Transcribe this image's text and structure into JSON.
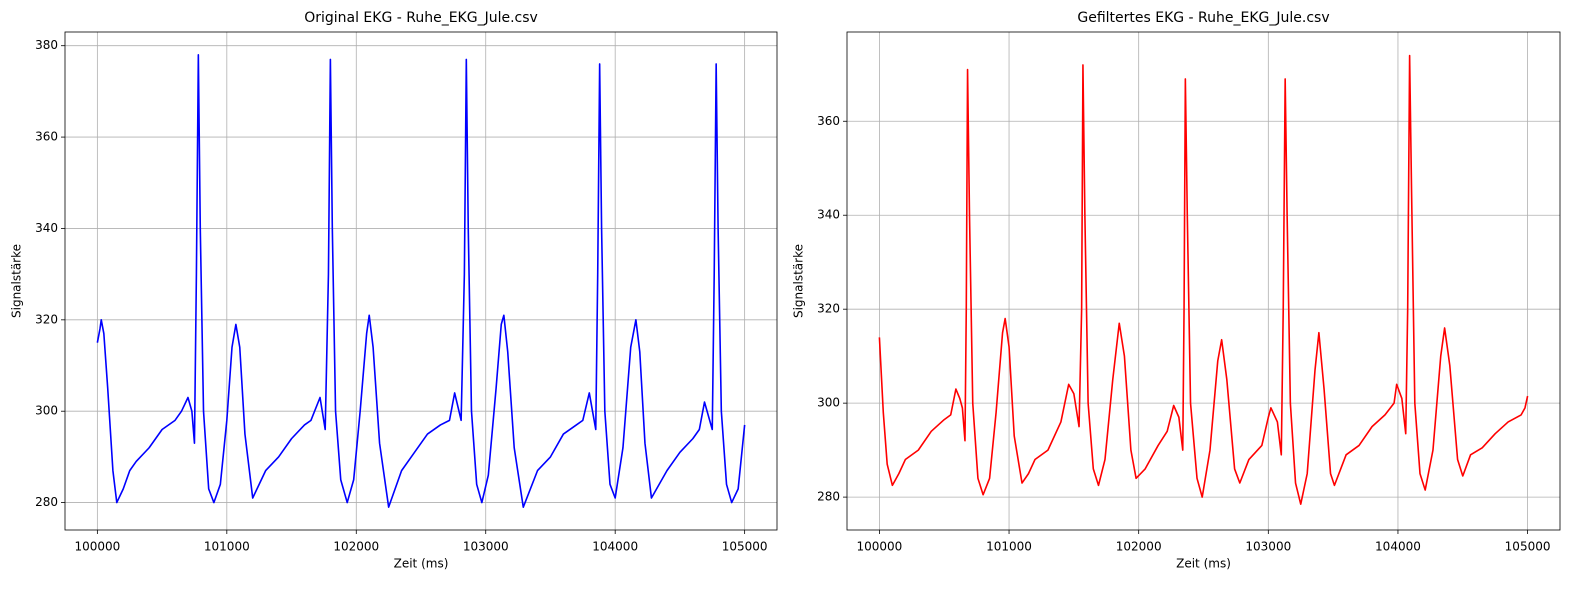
{
  "chart_data": [
    {
      "type": "line",
      "title": "Original EKG - Ruhe_EKG_Jule.csv",
      "xlabel": "Zeit (ms)",
      "ylabel": "Signalstärke",
      "color": "#0000ff",
      "grid": true,
      "xlim": [
        99750,
        105250
      ],
      "ylim": [
        274,
        383
      ],
      "xticks": [
        100000,
        101000,
        102000,
        103000,
        104000,
        105000
      ],
      "yticks": [
        280,
        300,
        320,
        340,
        360,
        380
      ],
      "x": [
        100000,
        100020,
        100030,
        100050,
        100080,
        100120,
        100150,
        100200,
        100250,
        100300,
        100400,
        100500,
        100600,
        100650,
        100700,
        100730,
        100750,
        100765,
        100780,
        100795,
        100820,
        100860,
        100900,
        100950,
        101000,
        101040,
        101070,
        101100,
        101140,
        101200,
        101300,
        101400,
        101500,
        101600,
        101650,
        101720,
        101760,
        101785,
        101800,
        101815,
        101840,
        101880,
        101930,
        101980,
        102030,
        102080,
        102100,
        102130,
        102180,
        102250,
        102350,
        102450,
        102550,
        102650,
        102720,
        102760,
        102810,
        102835,
        102850,
        102865,
        102890,
        102930,
        102970,
        103020,
        103080,
        103120,
        103140,
        103170,
        103220,
        103290,
        103400,
        103500,
        103600,
        103700,
        103750,
        103800,
        103850,
        103865,
        103880,
        103895,
        103920,
        103960,
        104000,
        104060,
        104120,
        104160,
        104190,
        104230,
        104280,
        104400,
        104500,
        104600,
        104650,
        104690,
        104730,
        104750,
        104765,
        104780,
        104795,
        104820,
        104860,
        104900,
        104950,
        105000
      ],
      "values": [
        315,
        318,
        320,
        317,
        305,
        287,
        280,
        283,
        287,
        289,
        292,
        296,
        298,
        300,
        303,
        300,
        293,
        330,
        378,
        340,
        300,
        283,
        280,
        284,
        298,
        314,
        319,
        314,
        295,
        281,
        287,
        290,
        294,
        297,
        298,
        303,
        296,
        330,
        377,
        340,
        300,
        285,
        280,
        285,
        300,
        317,
        321,
        314,
        293,
        279,
        287,
        291,
        295,
        297,
        298,
        304,
        298,
        330,
        377,
        340,
        300,
        284,
        280,
        286,
        305,
        319,
        321,
        313,
        292,
        279,
        287,
        290,
        295,
        297,
        298,
        304,
        296,
        330,
        376,
        340,
        300,
        284,
        281,
        292,
        314,
        320,
        313,
        293,
        281,
        287,
        291,
        294,
        296,
        302,
        298,
        296,
        330,
        376,
        340,
        300,
        284,
        280,
        283,
        297
      ]
    },
    {
      "type": "line",
      "title": "Gefiltertes EKG - Ruhe_EKG_Jule.csv",
      "xlabel": "Zeit (ms)",
      "ylabel": "Signalstärke",
      "color": "#ff0000",
      "grid": true,
      "xlim": [
        99750,
        105250
      ],
      "ylim": [
        273,
        379
      ],
      "xticks": [
        100000,
        101000,
        102000,
        103000,
        104000,
        105000
      ],
      "yticks": [
        280,
        300,
        320,
        340,
        360
      ],
      "x": [
        100000,
        100030,
        100060,
        100100,
        100150,
        100200,
        100300,
        100400,
        100500,
        100550,
        100590,
        100620,
        100640,
        100660,
        100670,
        100680,
        100695,
        100720,
        100760,
        100800,
        100850,
        100900,
        100950,
        100970,
        101000,
        101040,
        101100,
        101150,
        101200,
        101300,
        101400,
        101460,
        101500,
        101540,
        101560,
        101570,
        101585,
        101610,
        101650,
        101690,
        101740,
        101800,
        101850,
        101890,
        101940,
        101980,
        102050,
        102150,
        102220,
        102270,
        102310,
        102340,
        102350,
        102360,
        102375,
        102400,
        102450,
        102490,
        102550,
        102610,
        102640,
        102680,
        102740,
        102780,
        102850,
        102950,
        103000,
        103020,
        103070,
        103100,
        103115,
        103130,
        103145,
        103170,
        103210,
        103250,
        103300,
        103360,
        103390,
        103430,
        103480,
        103510,
        103600,
        103700,
        103800,
        103900,
        103970,
        103990,
        104030,
        104060,
        104075,
        104090,
        104105,
        104130,
        104170,
        104210,
        104270,
        104330,
        104360,
        104400,
        104460,
        104500,
        104560,
        104650,
        104750,
        104850,
        104950,
        104980,
        105000
      ],
      "values": [
        314,
        298,
        287,
        282.5,
        285,
        288,
        290,
        294,
        296.5,
        297.5,
        303,
        301,
        299,
        292,
        320,
        371,
        340,
        300,
        284,
        280.5,
        284,
        298,
        315,
        318,
        312,
        293,
        283,
        285,
        288,
        290,
        296,
        304,
        302,
        295,
        320,
        372,
        340,
        300,
        286,
        282.5,
        288,
        305,
        317,
        310,
        290,
        284,
        286,
        291,
        294,
        299.5,
        297,
        290,
        320,
        369,
        340,
        300,
        284,
        280,
        290,
        309,
        313.5,
        305,
        286,
        283,
        288,
        291,
        297,
        299,
        296,
        289,
        320,
        369,
        340,
        300,
        283,
        278.5,
        285,
        307,
        315,
        303,
        285,
        282.5,
        289,
        291,
        295,
        297.5,
        300,
        304,
        301,
        293.5,
        320,
        374,
        345,
        300,
        285,
        281.5,
        290,
        310,
        316,
        308,
        288,
        284.5,
        289,
        290.5,
        293.5,
        296,
        297.5,
        299,
        301.5
      ]
    }
  ]
}
